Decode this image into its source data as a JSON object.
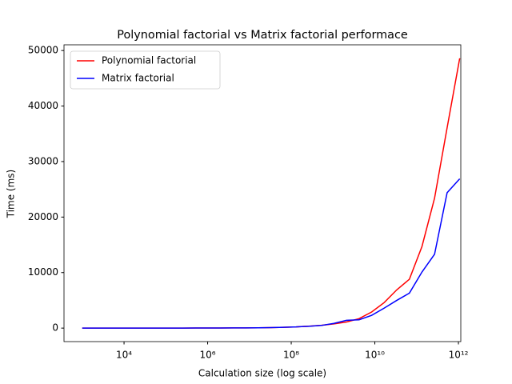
{
  "chart_data": {
    "type": "line",
    "title": "Polynomial factorial vs Matrix factorial performace",
    "x_label": "Calculation size (log scale)",
    "y_label": "Time (ms)",
    "x_scale": "log",
    "grid": false,
    "legend": "upper left",
    "x": [
      1000,
      2000,
      4000,
      8000,
      16000,
      32000,
      64000,
      128000,
      256000,
      512000,
      1024000,
      2048000,
      4096000,
      8192000,
      16384000,
      32768000,
      65536000,
      131072000,
      262144000,
      524288000,
      1048576000,
      2097152000,
      4194304000,
      8388608000,
      16777216000,
      33554432000,
      67108864000,
      134217728000,
      268435456000,
      536870912000,
      1073741824000
    ],
    "series": [
      {
        "name": "Polynomial factorial",
        "color": "#ff0000",
        "values": [
          1,
          1,
          2,
          2,
          3,
          4,
          5,
          7,
          9,
          12,
          16,
          22,
          30,
          45,
          65,
          95,
          140,
          220,
          350,
          500,
          750,
          1100,
          1700,
          2900,
          4600,
          6900,
          8800,
          14700,
          23400,
          36100,
          48600
        ]
      },
      {
        "name": "Matrix factorial",
        "color": "#0000ff",
        "values": [
          1,
          1,
          2,
          2,
          3,
          4,
          5,
          7,
          9,
          12,
          16,
          22,
          30,
          45,
          65,
          95,
          140,
          210,
          330,
          480,
          850,
          1400,
          1500,
          2300,
          3600,
          5000,
          6300,
          10100,
          13300,
          24400,
          26900
        ]
      }
    ],
    "xlim": [
      366,
      1140000000000
    ],
    "xticks": [
      {
        "value": 10000,
        "label": "10⁴"
      },
      {
        "value": 1000000,
        "label": "10⁶"
      },
      {
        "value": 100000000,
        "label": "10⁸"
      },
      {
        "value": 10000000000,
        "label": "10¹⁰"
      },
      {
        "value": 1000000000000,
        "label": "10¹²"
      }
    ],
    "ylim": [
      -2430,
      51030
    ],
    "yticks": [
      0,
      10000,
      20000,
      30000,
      40000,
      50000
    ]
  }
}
